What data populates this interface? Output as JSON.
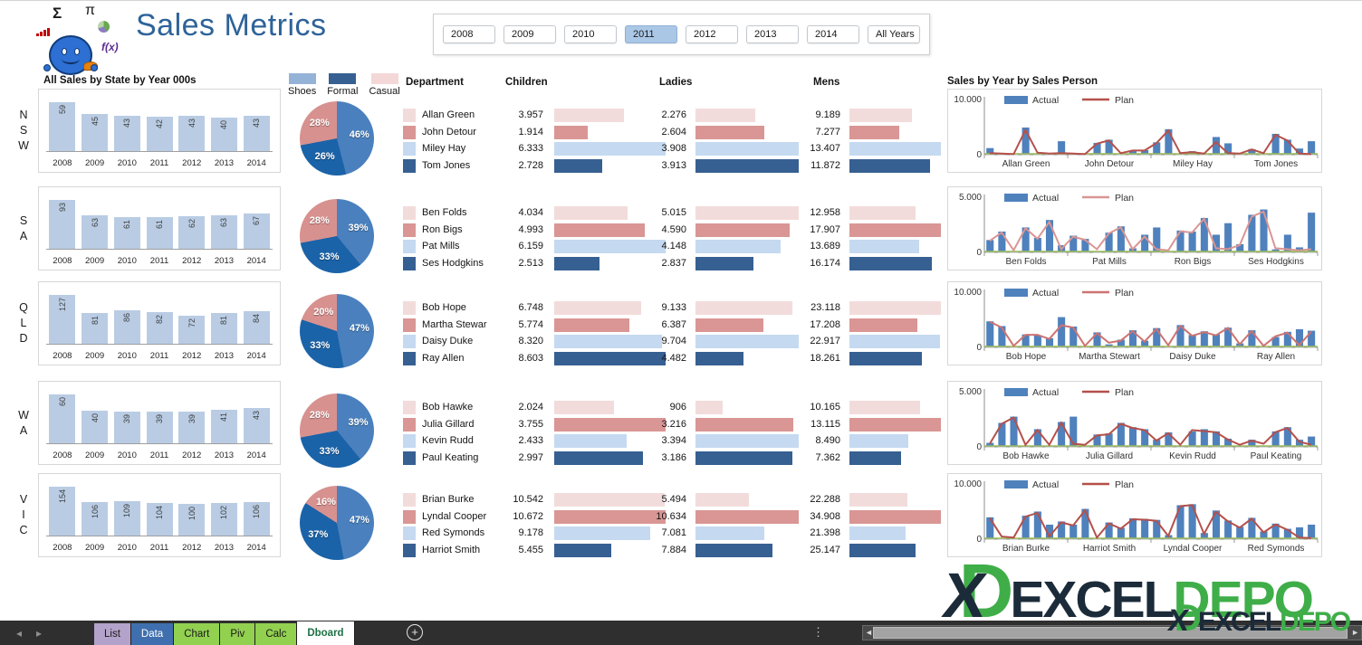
{
  "app": {
    "title": "Sales Metrics"
  },
  "logo": {
    "sigma": "Σ",
    "pi": "π",
    "fx": "f(x)"
  },
  "slicer": {
    "years": [
      "2008",
      "2009",
      "2010",
      "2011",
      "2012",
      "2013",
      "2014",
      "All Years"
    ],
    "selected": "2011"
  },
  "icons": {
    "nav_left": "◂",
    "nav_right": "▸",
    "dots": "⋮",
    "plus": "+",
    "scroll_left": "◄",
    "scroll_right": "►"
  },
  "colors": {
    "title_blue": "#2e6399",
    "state_bar_fill": "#b9cce4",
    "pie_shoes": "#4a80bd",
    "pie_formal": "#1b63a8",
    "pie_casual": "#d7918f",
    "legend_swatches": [
      "#95b3d7",
      "#376092",
      "#f4d8d8"
    ],
    "dept_row_colors": [
      "#f2dcdb",
      "#d99694",
      "#c5d9f1",
      "#376092"
    ],
    "actual_bar": "#4f81bd",
    "zero_line": "#9bbb59",
    "slicer_selected_bg": "#aac7e6"
  },
  "chart_data": {
    "state_bars": {
      "type": "bar",
      "title": "All Sales by State by Year 000s",
      "categories": [
        "2008",
        "2009",
        "2010",
        "2011",
        "2012",
        "2013",
        "2014"
      ],
      "series": [
        {
          "name": "NSW",
          "values": [
            59,
            45,
            43,
            42,
            43,
            40,
            43
          ]
        },
        {
          "name": "SA",
          "values": [
            93,
            63,
            61,
            61,
            62,
            63,
            67
          ]
        },
        {
          "name": "QLD",
          "values": [
            127,
            81,
            86,
            82,
            72,
            81,
            84
          ]
        },
        {
          "name": "WA",
          "values": [
            60,
            40,
            39,
            39,
            39,
            41,
            43
          ]
        },
        {
          "name": "VIC",
          "values": [
            154,
            106,
            109,
            104,
            100,
            102,
            106
          ]
        }
      ]
    },
    "pies": {
      "type": "pie",
      "legend": [
        "Shoes",
        "Formal",
        "Casual"
      ],
      "series": [
        {
          "name": "NSW",
          "values": [
            46,
            26,
            28
          ]
        },
        {
          "name": "SA",
          "values": [
            39,
            33,
            28
          ]
        },
        {
          "name": "QLD",
          "values": [
            47,
            33,
            20
          ]
        },
        {
          "name": "WA",
          "values": [
            39,
            33,
            28
          ]
        },
        {
          "name": "VIC",
          "values": [
            47,
            37,
            16
          ]
        }
      ]
    },
    "dept_table": {
      "type": "table",
      "headers": [
        "Department",
        "Children",
        "Ladies",
        "Mens"
      ],
      "groups": [
        {
          "state": "NSW",
          "rows": [
            {
              "name": "Allan Green",
              "children": "3.957",
              "cv": 3.957,
              "ladies": "2.276",
              "lv": 2.276,
              "mens": "9.189",
              "mv": 9.189
            },
            {
              "name": "John Detour",
              "children": "1.914",
              "cv": 1.914,
              "ladies": "2.604",
              "lv": 2.604,
              "mens": "7.277",
              "mv": 7.277
            },
            {
              "name": "Miley Hay",
              "children": "6.333",
              "cv": 6.333,
              "ladies": "3.908",
              "lv": 3.908,
              "mens": "13.407",
              "mv": 13.407
            },
            {
              "name": "Tom Jones",
              "children": "2.728",
              "cv": 2.728,
              "ladies": "3.913",
              "lv": 3.913,
              "mens": "11.872",
              "mv": 11.872
            }
          ]
        },
        {
          "state": "SA",
          "rows": [
            {
              "name": "Ben Folds",
              "children": "4.034",
              "cv": 4.034,
              "ladies": "5.015",
              "lv": 5.015,
              "mens": "12.958",
              "mv": 12.958
            },
            {
              "name": "Ron Bigs",
              "children": "4.993",
              "cv": 4.993,
              "ladies": "4.590",
              "lv": 4.59,
              "mens": "17.907",
              "mv": 17.907
            },
            {
              "name": "Pat Mills",
              "children": "6.159",
              "cv": 6.159,
              "ladies": "4.148",
              "lv": 4.148,
              "mens": "13.689",
              "mv": 13.689
            },
            {
              "name": "Ses Hodgkins",
              "children": "2.513",
              "cv": 2.513,
              "ladies": "2.837",
              "lv": 2.837,
              "mens": "16.174",
              "mv": 16.174
            }
          ]
        },
        {
          "state": "QLD",
          "rows": [
            {
              "name": "Bob Hope",
              "children": "6.748",
              "cv": 6.748,
              "ladies": "9.133",
              "lv": 9.133,
              "mens": "23.118",
              "mv": 23.118
            },
            {
              "name": "Martha Stewar",
              "children": "5.774",
              "cv": 5.774,
              "ladies": "6.387",
              "lv": 6.387,
              "mens": "17.208",
              "mv": 17.208
            },
            {
              "name": "Daisy Duke",
              "children": "8.320",
              "cv": 8.32,
              "ladies": "9.704",
              "lv": 9.704,
              "mens": "22.917",
              "mv": 22.917
            },
            {
              "name": "Ray Allen",
              "children": "8.603",
              "cv": 8.603,
              "ladies": "4.482",
              "lv": 4.482,
              "mens": "18.261",
              "mv": 18.261
            }
          ]
        },
        {
          "state": "WA",
          "rows": [
            {
              "name": "Bob Hawke",
              "children": "2.024",
              "cv": 2.024,
              "ladies": "906",
              "lv": 0.906,
              "mens": "10.165",
              "mv": 10.165
            },
            {
              "name": "Julia Gillard",
              "children": "3.755",
              "cv": 3.755,
              "ladies": "3.216",
              "lv": 3.216,
              "mens": "13.115",
              "mv": 13.115
            },
            {
              "name": "Kevin Rudd",
              "children": "2.433",
              "cv": 2.433,
              "ladies": "3.394",
              "lv": 3.394,
              "mens": "8.490",
              "mv": 8.49
            },
            {
              "name": "Paul Keating",
              "children": "2.997",
              "cv": 2.997,
              "ladies": "3.186",
              "lv": 3.186,
              "mens": "7.362",
              "mv": 7.362
            }
          ]
        },
        {
          "state": "VIC",
          "rows": [
            {
              "name": "Brian Burke",
              "children": "10.542",
              "cv": 10.542,
              "ladies": "5.494",
              "lv": 5.494,
              "mens": "22.288",
              "mv": 22.288
            },
            {
              "name": "Lyndal Cooper",
              "children": "10.672",
              "cv": 10.672,
              "ladies": "10.634",
              "lv": 10.634,
              "mens": "34.908",
              "mv": 34.908
            },
            {
              "name": "Red Symonds",
              "children": "9.178",
              "cv": 9.178,
              "ladies": "7.081",
              "lv": 7.081,
              "mens": "21.398",
              "mv": 21.398
            },
            {
              "name": "Harriot Smith",
              "children": "5.455",
              "cv": 5.455,
              "ladies": "7.884",
              "lv": 7.884,
              "mens": "25.147",
              "mv": 25.147
            }
          ]
        }
      ]
    },
    "sales_person": {
      "type": "bar+line",
      "title": "Sales by Year by Sales Person",
      "legend": [
        "Actual",
        "Plan"
      ],
      "years": [
        "2008",
        "2009",
        "2010",
        "2011",
        "2012",
        "2013",
        "2014"
      ],
      "charts": [
        {
          "ymax": 10,
          "ymax_label": "10.000",
          "ymin_label": "0",
          "plan_color": "#b5504b",
          "people": [
            {
              "name": "Allan Green",
              "actual": [
                1.3,
                0.1,
                0.1,
                5.2,
                0.2,
                0.1,
                2.6
              ],
              "plan": [
                0.3,
                0.2,
                0.1,
                4.7,
                0.4,
                0.2,
                0.3
              ]
            },
            {
              "name": "John Detour",
              "actual": [
                0.1,
                0.1,
                2.3,
                2.9,
                0.1,
                0.7,
                0.9
              ],
              "plan": [
                0.2,
                0.1,
                2.1,
                2.7,
                0.3,
                0.8,
                0.8
              ]
            },
            {
              "name": "Miley Hay",
              "actual": [
                2.4,
                4.9,
                0.1,
                0.7,
                0.1,
                3.4,
                2.2
              ],
              "plan": [
                2.2,
                4.6,
                0.3,
                0.5,
                0.2,
                2.4,
                0.3
              ]
            },
            {
              "name": "Tom Jones",
              "actual": [
                0.1,
                1.1,
                0.1,
                4.0,
                2.9,
                1.2,
                2.6
              ],
              "plan": [
                0.2,
                1.0,
                0.3,
                3.8,
                2.7,
                0.2,
                0.1
              ]
            }
          ]
        },
        {
          "ymax": 5,
          "ymax_label": "5.000",
          "ymin_label": "0",
          "plan_color": "#d99694",
          "people": [
            {
              "name": "Ben Folds",
              "actual": [
                1.2,
                2.0,
                0.1,
                2.4,
                1.4,
                3.1,
                0.7
              ],
              "plan": [
                1.1,
                1.9,
                0.2,
                2.3,
                1.3,
                2.9,
                0.3
              ]
            },
            {
              "name": "Pat Mills",
              "actual": [
                1.6,
                1.3,
                0.1,
                1.9,
                2.5,
                0.4,
                1.7
              ],
              "plan": [
                1.5,
                1.2,
                0.3,
                1.8,
                2.4,
                0.3,
                1.5
              ]
            },
            {
              "name": "Ron Bigs",
              "actual": [
                2.4,
                0.1,
                2.1,
                2.0,
                3.3,
                1.7,
                2.8
              ],
              "plan": [
                0.3,
                0.2,
                2.0,
                1.9,
                3.2,
                0.4,
                0.3
              ]
            },
            {
              "name": "Ses Hodgkins",
              "actual": [
                0.8,
                3.6,
                4.1,
                0.3,
                1.7,
                0.5,
                3.8
              ],
              "plan": [
                0.7,
                3.4,
                3.9,
                0.4,
                0.3,
                0.2,
                0.3
              ]
            }
          ]
        },
        {
          "ymax": 10,
          "ymax_label": "10.000",
          "ymin_label": "0",
          "plan_color": "#cd7371",
          "people": [
            {
              "name": "Bob Hope",
              "actual": [
                5.0,
                4.1,
                0.1,
                2.5,
                2.3,
                1.8,
                5.8
              ],
              "plan": [
                4.9,
                3.8,
                0.3,
                2.4,
                2.4,
                1.6,
                4.2
              ]
            },
            {
              "name": "Martha Stewart",
              "actual": [
                4.0,
                0.1,
                2.9,
                0.6,
                1.5,
                3.3,
                1.3
              ],
              "plan": [
                3.8,
                0.3,
                2.7,
                0.9,
                1.3,
                3.1,
                1.1
              ]
            },
            {
              "name": "Daisy Duke",
              "actual": [
                3.7,
                0.1,
                4.3,
                2.4,
                3.1,
                2.5,
                3.8
              ],
              "plan": [
                3.5,
                0.4,
                4.1,
                2.2,
                2.9,
                2.3,
                3.7
              ]
            },
            {
              "name": "Ray Allen",
              "actual": [
                0.8,
                3.3,
                0.1,
                2.0,
                3.0,
                3.5,
                3.2
              ],
              "plan": [
                0.6,
                3.1,
                0.3,
                2.1,
                2.8,
                0.4,
                3.0
              ]
            }
          ]
        },
        {
          "ymax": 5,
          "ymax_label": "5.000",
          "ymin_label": "0",
          "plan_color": "#b5504b",
          "people": [
            {
              "name": "Bob Hawke",
              "actual": [
                0.4,
                2.3,
                2.9,
                0.1,
                1.7,
                0.1,
                2.4
              ],
              "plan": [
                0.3,
                2.2,
                2.8,
                0.2,
                1.6,
                0.2,
                2.3
              ]
            },
            {
              "name": "Julia Gillard",
              "actual": [
                2.9,
                0.1,
                1.2,
                1.3,
                2.3,
                1.9,
                1.7
              ],
              "plan": [
                0.3,
                0.2,
                1.1,
                1.2,
                2.2,
                1.8,
                1.6
              ]
            },
            {
              "name": "Kevin Rudd",
              "actual": [
                0.7,
                1.4,
                0.1,
                1.5,
                1.7,
                1.5,
                0.8
              ],
              "plan": [
                0.6,
                1.3,
                0.2,
                1.6,
                1.5,
                1.4,
                0.7
              ]
            },
            {
              "name": "Paul Keating",
              "actual": [
                0.1,
                0.7,
                0.1,
                1.5,
                1.9,
                0.7,
                1.0
              ],
              "plan": [
                0.2,
                0.6,
                0.3,
                1.4,
                1.8,
                0.5,
                0.2
              ]
            }
          ]
        },
        {
          "ymax": 10,
          "ymax_label": "10.000",
          "ymin_label": "0",
          "plan_color": "#b5504b",
          "people": [
            {
              "name": "Brian Burke",
              "actual": [
                4.2,
                0.1,
                0.1,
                4.5,
                5.3,
                2.8,
                3.4
              ],
              "plan": [
                4.0,
                0.5,
                0.3,
                4.3,
                5.0,
                0.5,
                3.2
              ]
            },
            {
              "name": "Harriot Smith",
              "actual": [
                2.8,
                5.8,
                0.1,
                3.2,
                2.2,
                4.0,
                3.9
              ],
              "plan": [
                2.6,
                5.5,
                0.3,
                3.0,
                2.0,
                3.8,
                3.7
              ]
            },
            {
              "name": "Lyndal Cooper",
              "actual": [
                3.7,
                0.8,
                6.5,
                6.7,
                1.2,
                5.5,
                3.6
              ],
              "plan": [
                3.5,
                0.6,
                6.3,
                6.5,
                1.0,
                5.2,
                3.4
              ]
            },
            {
              "name": "Red Symonds",
              "actual": [
                2.4,
                4.1,
                1.5,
                3.0,
                2.0,
                2.3,
                2.8
              ],
              "plan": [
                2.2,
                3.9,
                1.3,
                2.8,
                1.8,
                0.3,
                0.2
              ]
            }
          ]
        }
      ]
    }
  },
  "tabs": {
    "items": [
      {
        "label": "List",
        "bg": "#b3a2c9",
        "fg": "#1a1a1a",
        "active": false
      },
      {
        "label": "Data",
        "bg": "#3f6fae",
        "fg": "#ffffff",
        "active": false
      },
      {
        "label": "Chart",
        "bg": "#92d050",
        "fg": "#1a1a1a",
        "active": false
      },
      {
        "label": "Piv",
        "bg": "#92d050",
        "fg": "#1a1a1a",
        "active": false
      },
      {
        "label": "Calc",
        "bg": "#92d050",
        "fg": "#1a1a1a",
        "active": false
      },
      {
        "label": "Dboard",
        "bg": "#ffffff",
        "fg": "#1e7145",
        "active": true
      }
    ]
  },
  "watermark": {
    "monogram_x": "X",
    "monogram_d": "D",
    "text_dark": "EXCEL",
    "text_green": "DEPO"
  }
}
